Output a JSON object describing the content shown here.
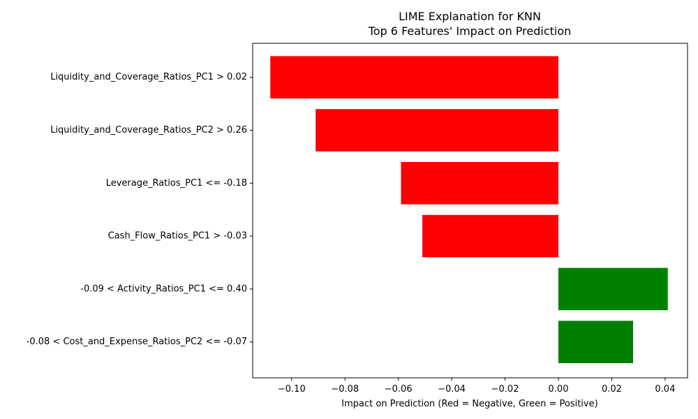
{
  "chart_data": {
    "type": "bar",
    "orientation": "horizontal",
    "title": "LIME Explanation for KNN",
    "subtitle": "Top 6 Features' Impact on Prediction",
    "xlabel": "Impact on Prediction (Red = Negative, Green = Positive)",
    "ylabel": "",
    "xlim": [
      -0.1146,
      0.0484
    ],
    "xticks": [
      -0.1,
      -0.08,
      -0.06,
      -0.04,
      -0.02,
      0.0,
      0.02,
      0.04
    ],
    "xtick_labels": [
      "−0.10",
      "−0.08",
      "−0.06",
      "−0.04",
      "−0.02",
      "0.00",
      "0.02",
      "0.04"
    ],
    "categories": [
      "Liquidity_and_Coverage_Ratios_PC1 > 0.02",
      "Liquidity_and_Coverage_Ratios_PC2 > 0.26",
      "Leverage_Ratios_PC1 <= -0.18",
      "Cash_Flow_Ratios_PC1 > -0.03",
      "-0.09 < Activity_Ratios_PC1 <= 0.40",
      "-0.08 < Cost_and_Expense_Ratios_PC2 <= -0.07"
    ],
    "values": [
      -0.108,
      -0.091,
      -0.059,
      -0.051,
      0.041,
      0.028
    ],
    "colors": {
      "negative": "#ff0000",
      "positive": "#008000"
    },
    "grid": false,
    "legend": "none"
  }
}
